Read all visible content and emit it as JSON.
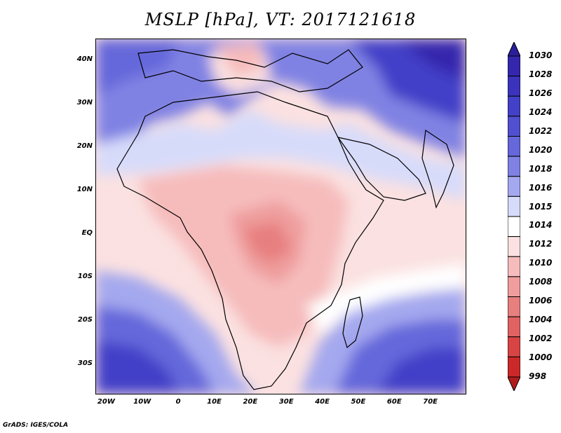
{
  "title": "MSLP [hPa], VT: 2017121618",
  "credit": "GrADS: IGES/COLA",
  "lat_labels": [
    "40N",
    "30N",
    "20N",
    "10N",
    "EQ",
    "10S",
    "20S",
    "30S"
  ],
  "lat_values": [
    40,
    30,
    20,
    10,
    0,
    -10,
    -20,
    -30
  ],
  "lon_labels": [
    "20W",
    "10W",
    "0",
    "10E",
    "20E",
    "30E",
    "40E",
    "50E",
    "60E",
    "70E"
  ],
  "lon_values": [
    -20,
    -10,
    0,
    10,
    20,
    30,
    40,
    50,
    60,
    70
  ],
  "colorbar": {
    "levels": [
      "1030",
      "1028",
      "1026",
      "1024",
      "1022",
      "1020",
      "1018",
      "1016",
      "1015",
      "1014",
      "1012",
      "1010",
      "1008",
      "1006",
      "1004",
      "1002",
      "1000",
      "998"
    ],
    "colors": [
      "#2b1e9c",
      "#3527ad",
      "#3c33bd",
      "#4341c8",
      "#5050d0",
      "#6567da",
      "#8082e3",
      "#a4a8ee",
      "#d7dbfa",
      "#ffffff",
      "#fbe1e1",
      "#f6bcbc",
      "#ef9d9d",
      "#e77f7f",
      "#e06262",
      "#d84444",
      "#cb2929",
      "#b21b1b"
    ]
  }
}
